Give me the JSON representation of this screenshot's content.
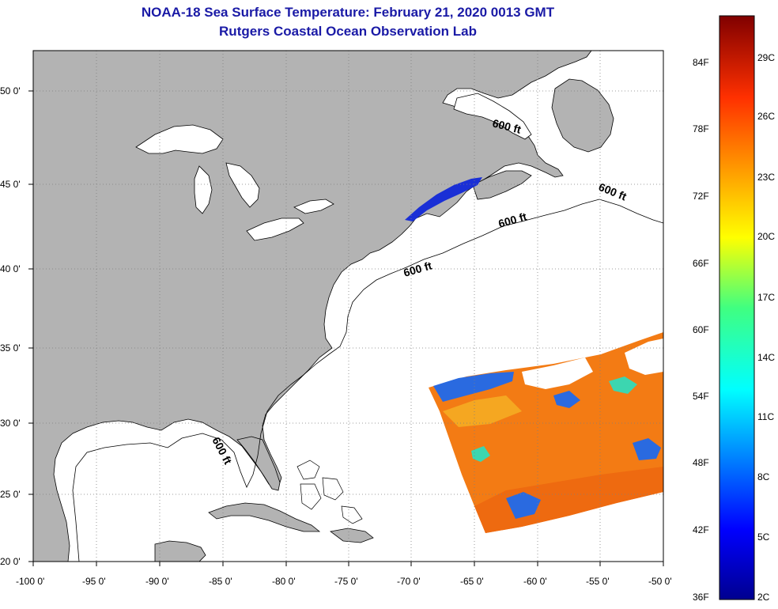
{
  "title": {
    "line1": "NOAA-18 Sea Surface Temperature:  February 21, 2020 0013 GMT",
    "line2": "Rutgers Coastal Ocean Observation Lab"
  },
  "colors": {
    "land": "#b3b3b3",
    "title": "#1a1aa6",
    "grid": "#7f7f7f"
  },
  "latitude_labels": [
    "50 0'",
    "45 0'",
    "40 0'",
    "35 0'",
    "30 0'",
    "25 0'",
    "20 0'"
  ],
  "longitude_labels": [
    "-100 0'",
    "-95 0'",
    "-90 0'",
    "-85 0'",
    "-80 0'",
    "-75 0'",
    "-70 0'",
    "-65 0'",
    "-60 0'",
    "-55 0'",
    "-50 0'"
  ],
  "contour_labels": [
    "600 ft",
    "600 ft",
    "600 ft",
    "600 ft",
    "600 ft"
  ],
  "colorbar": {
    "fahrenheit": [
      "84F",
      "78F",
      "72F",
      "66F",
      "60F",
      "54F",
      "48F",
      "42F",
      "36F"
    ],
    "celsius": [
      "29C",
      "26C",
      "23C",
      "20C",
      "17C",
      "14C",
      "11C",
      "8C",
      "5C",
      "2C"
    ]
  }
}
